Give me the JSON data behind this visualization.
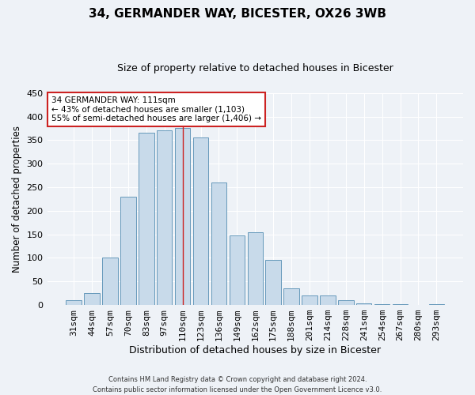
{
  "title": "34, GERMANDER WAY, BICESTER, OX26 3WB",
  "subtitle": "Size of property relative to detached houses in Bicester",
  "xlabel": "Distribution of detached houses by size in Bicester",
  "ylabel": "Number of detached properties",
  "bar_labels": [
    "31sqm",
    "44sqm",
    "57sqm",
    "70sqm",
    "83sqm",
    "97sqm",
    "110sqm",
    "123sqm",
    "136sqm",
    "149sqm",
    "162sqm",
    "175sqm",
    "188sqm",
    "201sqm",
    "214sqm",
    "228sqm",
    "241sqm",
    "254sqm",
    "267sqm",
    "280sqm",
    "293sqm"
  ],
  "bar_values": [
    10,
    25,
    100,
    230,
    365,
    370,
    375,
    355,
    260,
    147,
    155,
    95,
    35,
    21,
    21,
    11,
    3,
    1,
    1,
    0,
    1
  ],
  "bar_color": "#c8daea",
  "bar_edge_color": "#6699bb",
  "highlight_bar_index": 6,
  "highlight_line_color": "#cc2222",
  "ylim": [
    0,
    450
  ],
  "yticks": [
    0,
    50,
    100,
    150,
    200,
    250,
    300,
    350,
    400,
    450
  ],
  "annotation_title": "34 GERMANDER WAY: 111sqm",
  "annotation_line1": "← 43% of detached houses are smaller (1,103)",
  "annotation_line2": "55% of semi-detached houses are larger (1,406) →",
  "annotation_box_color": "#ffffff",
  "annotation_box_edge": "#cc2222",
  "footer_line1": "Contains HM Land Registry data © Crown copyright and database right 2024.",
  "footer_line2": "Contains public sector information licensed under the Open Government Licence v3.0.",
  "background_color": "#eef2f7",
  "plot_bg_color": "#eef2f7",
  "grid_color": "#ffffff",
  "title_fontsize": 11,
  "subtitle_fontsize": 9
}
